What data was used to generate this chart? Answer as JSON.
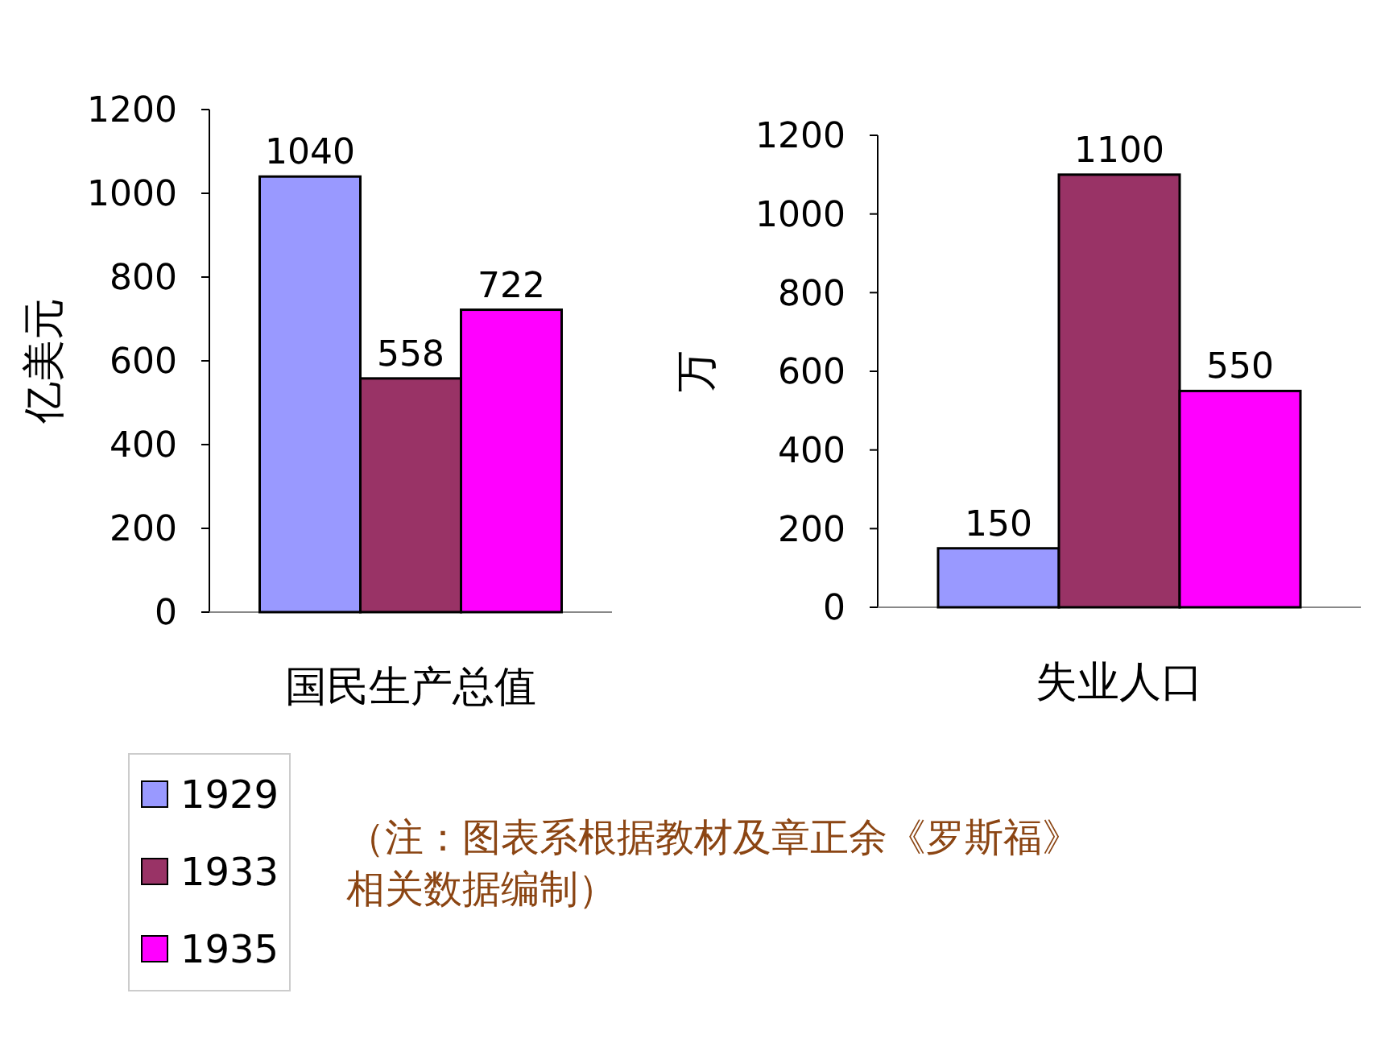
{
  "chart_data": [
    {
      "type": "bar",
      "categories": [
        "国民生产总值"
      ],
      "ylabel": "亿美元",
      "ylim": [
        0,
        1200
      ],
      "yticks": [
        0,
        200,
        400,
        600,
        800,
        1000,
        1200
      ],
      "data_labels": true,
      "legend": "bottom left",
      "series": [
        {
          "name": "1929",
          "color": "#9999ff",
          "values": [
            1040
          ]
        },
        {
          "name": "1933",
          "color": "#993366",
          "values": [
            558
          ]
        },
        {
          "name": "1935",
          "color": "#ff00ff",
          "values": [
            722
          ]
        }
      ]
    },
    {
      "type": "bar",
      "categories": [
        "失业人口"
      ],
      "ylabel": "万",
      "ylim": [
        0,
        1200
      ],
      "yticks": [
        0,
        200,
        400,
        600,
        800,
        1000,
        1200
      ],
      "data_labels": true,
      "annotations": [
        "（注：图表系根据教材及章正余《罗斯福》相关数据编制）"
      ],
      "series": [
        {
          "color": "#9999ff",
          "values": [
            150
          ]
        },
        {
          "color": "#993366",
          "values": [
            1100
          ]
        },
        {
          "color": "#ff00ff",
          "values": [
            550
          ]
        }
      ]
    }
  ]
}
